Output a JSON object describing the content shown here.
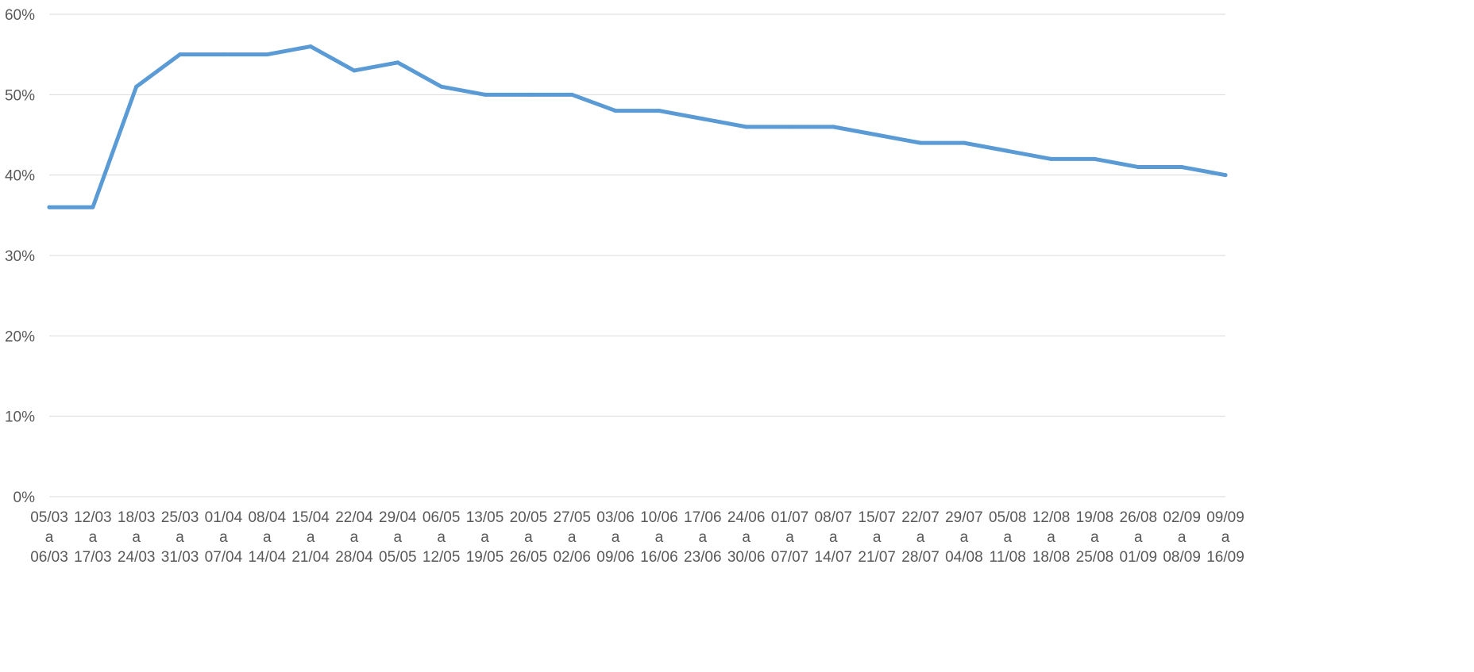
{
  "chart_data": {
    "type": "line",
    "title": "",
    "xlabel": "",
    "ylabel": "",
    "ylim": [
      0,
      60
    ],
    "y_ticks": [
      "0%",
      "10%",
      "20%",
      "30%",
      "40%",
      "50%",
      "60%"
    ],
    "y_tick_values": [
      0,
      10,
      20,
      30,
      40,
      50,
      60
    ],
    "grid": true,
    "legend": "none",
    "categories": [
      {
        "start": "05/03",
        "joiner": "a",
        "end": "06/03"
      },
      {
        "start": "12/03",
        "joiner": "a",
        "end": "17/03"
      },
      {
        "start": "18/03",
        "joiner": "a",
        "end": "24/03"
      },
      {
        "start": "25/03",
        "joiner": "a",
        "end": "31/03"
      },
      {
        "start": "01/04",
        "joiner": "a",
        "end": "07/04"
      },
      {
        "start": "08/04",
        "joiner": "a",
        "end": "14/04"
      },
      {
        "start": "15/04",
        "joiner": "a",
        "end": "21/04"
      },
      {
        "start": "22/04",
        "joiner": "a",
        "end": "28/04"
      },
      {
        "start": "29/04",
        "joiner": "a",
        "end": "05/05"
      },
      {
        "start": "06/05",
        "joiner": "a",
        "end": "12/05"
      },
      {
        "start": "13/05",
        "joiner": "a",
        "end": "19/05"
      },
      {
        "start": "20/05",
        "joiner": "a",
        "end": "26/05"
      },
      {
        "start": "27/05",
        "joiner": "a",
        "end": "02/06"
      },
      {
        "start": "03/06",
        "joiner": "a",
        "end": "09/06"
      },
      {
        "start": "10/06",
        "joiner": "a",
        "end": "16/06"
      },
      {
        "start": "17/06",
        "joiner": "a",
        "end": "23/06"
      },
      {
        "start": "24/06",
        "joiner": "a",
        "end": "30/06"
      },
      {
        "start": "01/07",
        "joiner": "a",
        "end": "07/07"
      },
      {
        "start": "08/07",
        "joiner": "a",
        "end": "14/07"
      },
      {
        "start": "15/07",
        "joiner": "a",
        "end": "21/07"
      },
      {
        "start": "22/07",
        "joiner": "a",
        "end": "28/07"
      },
      {
        "start": "29/07",
        "joiner": "a",
        "end": "04/08"
      },
      {
        "start": "05/08",
        "joiner": "a",
        "end": "11/08"
      },
      {
        "start": "12/08",
        "joiner": "a",
        "end": "18/08"
      },
      {
        "start": "19/08",
        "joiner": "a",
        "end": "25/08"
      },
      {
        "start": "26/08",
        "joiner": "a",
        "end": "01/09"
      },
      {
        "start": "02/09",
        "joiner": "a",
        "end": "08/09"
      },
      {
        "start": "09/09",
        "joiner": "a",
        "end": "16/09"
      }
    ],
    "series": [
      {
        "color": "#5b9bd5",
        "values": [
          36,
          36,
          51,
          55,
          55,
          55,
          56,
          53,
          54,
          51,
          50,
          50,
          50,
          48,
          48,
          47,
          46,
          46,
          46,
          45,
          44,
          44,
          43,
          42,
          42,
          41,
          41,
          40
        ]
      }
    ]
  }
}
